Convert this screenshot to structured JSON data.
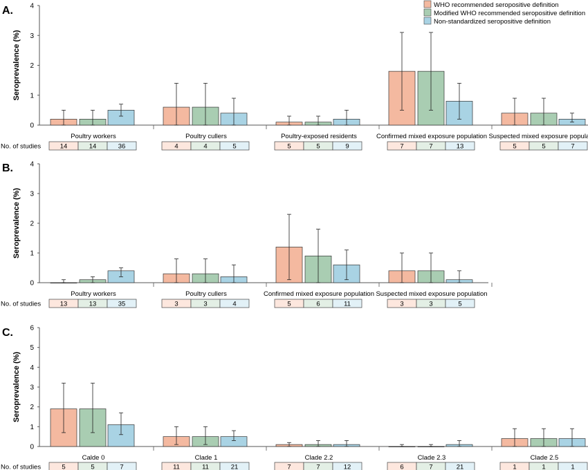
{
  "legend": {
    "items": [
      {
        "label": "WHO recommended seropositive definition",
        "color": "#f4b9a0"
      },
      {
        "label": "Modified WHO recommended seropositive definition",
        "color": "#a9cdb2"
      },
      {
        "label": "Non-standardized seropositive definition",
        "color": "#a9d3e4"
      }
    ]
  },
  "colors": {
    "bars": [
      "#f4b9a0",
      "#a9cdb2",
      "#a9d3e4"
    ],
    "cells": [
      "#fde7de",
      "#e3efe5",
      "#e2f1f7"
    ],
    "axis": "#555555"
  },
  "nstudies_label": "No. of studies",
  "chart_data": [
    {
      "panel": "A.",
      "type": "bar",
      "ylabel": "Seroprevalence (%)",
      "ylim": [
        0,
        4
      ],
      "yticks": [
        0,
        1,
        2,
        3,
        4
      ],
      "categories": [
        "Poultry workers",
        "Poultry cullers",
        "Poultry-exposed residents",
        "Confirmed mixed exposure population",
        "Suspected mixed exposure population"
      ],
      "series": [
        {
          "name": "WHO recommended seropositive definition",
          "values": [
            0.2,
            0.6,
            0.1,
            1.8,
            0.4
          ],
          "ci": [
            [
              0,
              0.5
            ],
            [
              0,
              1.4
            ],
            [
              0,
              0.3
            ],
            [
              0.5,
              3.1
            ],
            [
              0,
              0.9
            ]
          ],
          "n_studies": [
            14,
            4,
            5,
            7,
            5
          ]
        },
        {
          "name": "Modified WHO recommended seropositive definition",
          "values": [
            0.2,
            0.6,
            0.1,
            1.8,
            0.4
          ],
          "ci": [
            [
              0,
              0.5
            ],
            [
              0,
              1.4
            ],
            [
              0,
              0.3
            ],
            [
              0.5,
              3.1
            ],
            [
              0,
              0.9
            ]
          ],
          "n_studies": [
            14,
            4,
            5,
            7,
            5
          ]
        },
        {
          "name": "Non-standardized seropositive definition",
          "values": [
            0.5,
            0.4,
            0.2,
            0.8,
            0.2
          ],
          "ci": [
            [
              0.3,
              0.7
            ],
            [
              0,
              0.9
            ],
            [
              0,
              0.5
            ],
            [
              0.2,
              1.4
            ],
            [
              0.1,
              0.4
            ]
          ],
          "n_studies": [
            36,
            5,
            9,
            13,
            7
          ]
        }
      ]
    },
    {
      "panel": "B.",
      "type": "bar",
      "ylabel": "Seroprevalence (%)",
      "ylim": [
        0,
        4
      ],
      "yticks": [
        0,
        1,
        2,
        3,
        4
      ],
      "categories": [
        "Poultry workers",
        "Poultry cullers",
        "Confirmed mixed exposure population",
        "Suspected mixed exposure population"
      ],
      "series": [
        {
          "name": "WHO recommended seropositive definition",
          "values": [
            0.0,
            0.3,
            1.2,
            0.4
          ],
          "ci": [
            [
              0,
              0.1
            ],
            [
              0,
              0.8
            ],
            [
              0.1,
              2.3
            ],
            [
              0,
              1.0
            ]
          ],
          "n_studies": [
            13,
            3,
            5,
            3
          ]
        },
        {
          "name": "Modified WHO recommended seropositive definition",
          "values": [
            0.1,
            0.3,
            0.9,
            0.4
          ],
          "ci": [
            [
              0,
              0.2
            ],
            [
              0,
              0.8
            ],
            [
              0,
              1.8
            ],
            [
              0,
              1.0
            ]
          ],
          "n_studies": [
            13,
            3,
            6,
            3
          ]
        },
        {
          "name": "Non-standardized seropositive definition",
          "values": [
            0.4,
            0.2,
            0.6,
            0.1
          ],
          "ci": [
            [
              0.2,
              0.5
            ],
            [
              0,
              0.6
            ],
            [
              0.1,
              1.1
            ],
            [
              0,
              0.4
            ]
          ],
          "n_studies": [
            35,
            4,
            11,
            5
          ]
        }
      ]
    },
    {
      "panel": "C.",
      "type": "bar",
      "ylabel": "Seroprevalence (%)",
      "ylim": [
        0,
        6
      ],
      "yticks": [
        0,
        1,
        2,
        3,
        4,
        5,
        6
      ],
      "categories": [
        "Calde 0",
        "Clade 1",
        "Clade 2.2",
        "Clade 2.3",
        "Clade 2.5"
      ],
      "series": [
        {
          "name": "WHO recommended seropositive definition",
          "values": [
            1.9,
            0.5,
            0.1,
            0.0,
            0.4
          ],
          "ci": [
            [
              0.7,
              3.2
            ],
            [
              0.1,
              1.0
            ],
            [
              0,
              0.2
            ],
            [
              0,
              0.1
            ],
            [
              0,
              0.9
            ]
          ],
          "n_studies": [
            5,
            11,
            7,
            6,
            1
          ]
        },
        {
          "name": "Modified WHO recommended seropositive definition",
          "values": [
            1.9,
            0.5,
            0.1,
            0.0,
            0.4
          ],
          "ci": [
            [
              0.7,
              3.2
            ],
            [
              0.1,
              1.0
            ],
            [
              0,
              0.3
            ],
            [
              0,
              0.1
            ],
            [
              0,
              0.9
            ]
          ],
          "n_studies": [
            5,
            11,
            7,
            7,
            1
          ]
        },
        {
          "name": "Non-standardized seropositive definition",
          "values": [
            1.1,
            0.5,
            0.1,
            0.1,
            0.4
          ],
          "ci": [
            [
              0.6,
              1.7
            ],
            [
              0.3,
              0.8
            ],
            [
              0,
              0.3
            ],
            [
              0,
              0.3
            ],
            [
              0,
              0.9
            ]
          ],
          "n_studies": [
            7,
            21,
            12,
            21,
            1
          ]
        }
      ]
    }
  ]
}
